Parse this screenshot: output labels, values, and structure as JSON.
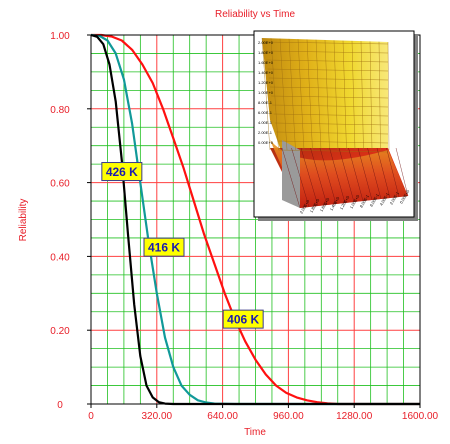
{
  "chart_data": {
    "type": "line",
    "title": "Reliability vs Time",
    "xlabel": "Time",
    "ylabel": "Reliability",
    "xlim": [
      0,
      1600
    ],
    "ylim": [
      0,
      1
    ],
    "x_ticks": [
      "0",
      "320.00",
      "640.00",
      "960.00",
      "1280.00",
      "1600.00"
    ],
    "y_ticks": [
      "0",
      "0.20",
      "0.40",
      "0.60",
      "0.80",
      "1.00"
    ],
    "grid": true,
    "series": [
      {
        "temperature": "406 K",
        "color": "#ff1010",
        "x": [
          0,
          50,
          100,
          150,
          200,
          250,
          300,
          350,
          400,
          450,
          500,
          550,
          600,
          650,
          700,
          750,
          800,
          850,
          900,
          950,
          1000,
          1050,
          1100,
          1150,
          1200,
          1300,
          1400,
          1600
        ],
        "y": [
          1.0,
          1.0,
          0.996,
          0.985,
          0.96,
          0.92,
          0.87,
          0.8,
          0.72,
          0.64,
          0.55,
          0.46,
          0.38,
          0.3,
          0.23,
          0.17,
          0.12,
          0.08,
          0.05,
          0.03,
          0.018,
          0.01,
          0.005,
          0.002,
          0.0,
          0.0,
          0.0,
          0.0
        ]
      },
      {
        "temperature": "416 K",
        "color": "#119999",
        "x": [
          0,
          40,
          80,
          120,
          160,
          200,
          240,
          280,
          320,
          360,
          400,
          440,
          480,
          520,
          560,
          600,
          700,
          800,
          1600
        ],
        "y": [
          1.0,
          0.998,
          0.985,
          0.95,
          0.88,
          0.76,
          0.6,
          0.44,
          0.3,
          0.18,
          0.1,
          0.05,
          0.025,
          0.01,
          0.004,
          0.001,
          0.0,
          0.0,
          0.0
        ]
      },
      {
        "temperature": "426 K",
        "color": "#000000",
        "x": [
          0,
          30,
          60,
          90,
          120,
          150,
          180,
          210,
          240,
          270,
          300,
          330,
          360,
          400,
          500,
          1600
        ],
        "y": [
          1.0,
          0.995,
          0.975,
          0.92,
          0.82,
          0.66,
          0.46,
          0.27,
          0.13,
          0.05,
          0.018,
          0.005,
          0.001,
          0.0,
          0.0,
          0.0
        ]
      }
    ],
    "annotations": [
      {
        "text": "426 K",
        "x": 150,
        "y": 0.63
      },
      {
        "text": "416 K",
        "x": 355,
        "y": 0.425
      },
      {
        "text": "406 K",
        "x": 740,
        "y": 0.23
      }
    ],
    "inset": {
      "type": "3d-surface",
      "axis_tick_labels": [
        "2.00E+0",
        "1.80E+0",
        "1.60E+0",
        "1.40E+0",
        "1.20E+0",
        "1.00E+0",
        "8.00E-1",
        "6.00E-1",
        "4.00E-1",
        "2.00E-1",
        "0.00E+0"
      ]
    }
  }
}
